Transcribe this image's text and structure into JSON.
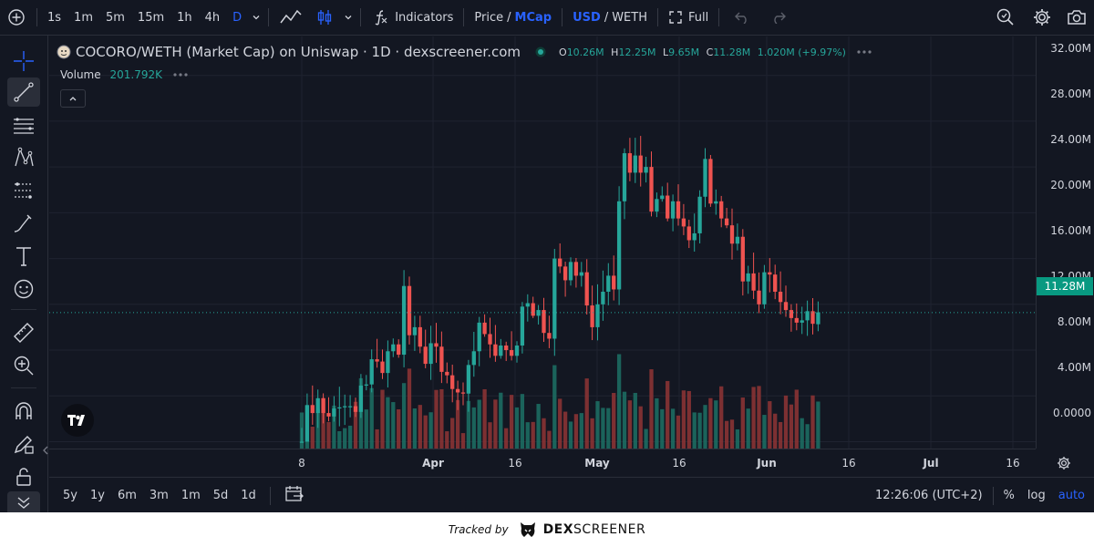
{
  "toolbar": {
    "timeframes": [
      "1s",
      "1m",
      "5m",
      "15m",
      "1h",
      "4h",
      "D"
    ],
    "active_timeframe": "D",
    "indicators_label": "Indicators",
    "price_label": "Price",
    "mcap_label": "MCap",
    "usd_label": "USD",
    "weth_label": "WETH",
    "full_label": "Full"
  },
  "legend": {
    "title": "COCORO/WETH (Market Cap) on Uniswap · 1D · dexscreener.com",
    "open_label": "O",
    "open": "10.26M",
    "high_label": "H",
    "high": "12.25M",
    "low_label": "L",
    "low": "9.65M",
    "close_label": "C",
    "close": "11.28M",
    "change": "1.020M (+9.97%)",
    "volume_label": "Volume",
    "volume": "201.792K"
  },
  "price_scale": {
    "labels": [
      "32.00M",
      "28.00M",
      "24.00M",
      "20.00M",
      "16.00M",
      "12.00M",
      "8.00M",
      "4.00M",
      "0.0000"
    ],
    "last_price": "11.28M"
  },
  "time_axis": {
    "labels": [
      "8",
      "Apr",
      "16",
      "May",
      "16",
      "Jun",
      "16",
      "Jul",
      "16"
    ]
  },
  "bottom": {
    "ranges": [
      "5y",
      "1y",
      "6m",
      "3m",
      "1m",
      "5d",
      "1d"
    ],
    "clock": "12:26:06 (UTC+2)",
    "percent": "%",
    "log": "log",
    "auto": "auto"
  },
  "footer": {
    "tracked_by": "Tracked by",
    "brand_bold": "DEX",
    "brand_rest": "SCREENER"
  },
  "colors": {
    "up": "#26a69a",
    "down": "#ef5350",
    "accent": "#2962ff",
    "background": "#131722"
  },
  "chart_data": {
    "type": "candlestick",
    "title": "COCORO/WETH (Market Cap) on Uniswap · 1D · dexscreener.com",
    "x_axis_ticks": [
      "8",
      "Apr",
      "16",
      "May",
      "16",
      "Jun",
      "16",
      "Jul",
      "16"
    ],
    "y_axis_ticks": [
      "32.00M",
      "28.00M",
      "24.00M",
      "20.00M",
      "16.00M",
      "12.00M",
      "8.00M",
      "4.00M",
      "0.0000"
    ],
    "ylim_millions": [
      -0.6,
      35.4
    ],
    "last": {
      "open": 10.26,
      "high": 12.25,
      "low": 9.65,
      "close": 11.28
    },
    "close_millions": [
      0.0,
      3.2,
      2.5,
      3.8,
      2.5,
      2.2,
      2.9,
      3.0,
      3.1,
      3.1,
      2.6,
      4.9,
      5.0,
      7.2,
      7.0,
      6.0,
      7.9,
      8.5,
      7.6,
      13.6,
      9.3,
      10.0,
      8.3,
      6.8,
      8.6,
      8.3,
      6.1,
      5.8,
      4.6,
      4.3,
      4.2,
      6.7,
      7.9,
      10.4,
      9.4,
      8.5,
      7.5,
      8.4,
      8.0,
      7.5,
      8.4,
      11.8,
      12.1,
      11.0,
      11.5,
      9.5,
      9.0,
      16.0,
      15.3,
      14.1,
      15.7,
      14.5,
      14.8,
      11.9,
      10.0,
      12.0,
      13.1,
      14.5,
      13.3,
      21.0,
      25.2,
      23.5,
      25.0,
      23.5,
      24.0,
      20.1,
      21.2,
      21.5,
      19.5,
      21.0,
      19.5,
      18.8,
      17.6,
      18.2,
      21.4,
      24.7,
      20.8,
      21.0,
      19.5,
      18.9,
      17.3,
      17.9,
      14.0,
      14.7,
      13.2,
      12.0,
      14.8,
      14.6,
      13.1,
      12.2,
      11.5,
      10.8,
      10.4,
      10.6,
      11.4,
      10.3,
      11.3
    ],
    "volume_scale": "relative, 0-1"
  }
}
